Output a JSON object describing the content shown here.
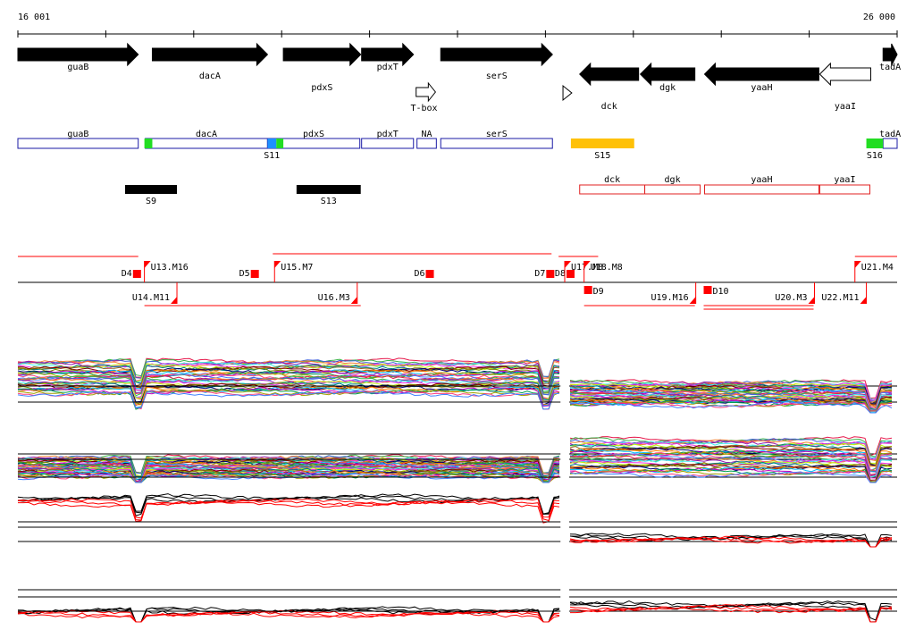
{
  "axis": {
    "start_label": "16 001",
    "end_label": "26 000",
    "start": 16001,
    "end": 26000
  },
  "colors": {
    "gene": "#000000",
    "outline_plus": "#1a1aa6",
    "outline_minus": "#e02020",
    "highlight_green": "#22dd22",
    "highlight_blue": "#1e90ff",
    "highlight_orange": "#ffc107",
    "marker_red": "#ff0000"
  },
  "genes": [
    {
      "id": "gene-guab",
      "label": "guaB",
      "start": 16001,
      "end": 17370,
      "strand": "+",
      "fill": "black",
      "label_row": 1
    },
    {
      "id": "gene-daca",
      "label": "dacA",
      "start": 17530,
      "end": 18840,
      "strand": "+",
      "fill": "black",
      "label_row": 2
    },
    {
      "id": "gene-pdxs",
      "label": "pdxS",
      "start": 19020,
      "end": 19900,
      "strand": "+",
      "fill": "black",
      "label_row": 3
    },
    {
      "id": "gene-pdxt",
      "label": "pdxT",
      "start": 19910,
      "end": 20500,
      "strand": "+",
      "fill": "black",
      "label_row": 1
    },
    {
      "id": "gene-sers",
      "label": "serS",
      "start": 20810,
      "end": 22080,
      "strand": "+",
      "fill": "black",
      "label_row": 2
    },
    {
      "id": "gene-dck",
      "label": "dck",
      "start": 22390,
      "end": 23060,
      "strand": "-",
      "fill": "black",
      "label_row": 4
    },
    {
      "id": "gene-dgk",
      "label": "dgk",
      "start": 23080,
      "end": 23700,
      "strand": "-",
      "fill": "black",
      "label_row": 3
    },
    {
      "id": "gene-yaah",
      "label": "yaaH",
      "start": 23810,
      "end": 25110,
      "strand": "-",
      "fill": "black",
      "label_row": 3
    },
    {
      "id": "gene-yaai",
      "label": "yaaI",
      "start": 25120,
      "end": 25700,
      "strand": "-",
      "fill": "white",
      "label_row": 4
    },
    {
      "id": "gene-tada",
      "label": "tadA",
      "start": 25840,
      "end": 26000,
      "strand": "+",
      "fill": "black",
      "label_row": 1
    }
  ],
  "features": [
    {
      "id": "tbox",
      "label": "T-box",
      "kind": "open-arrow",
      "start": 20530,
      "end": 20750
    },
    {
      "id": "terminator",
      "label": "",
      "kind": "small-triangle",
      "start": 22200,
      "end": 22300
    }
  ],
  "transcripts": [
    {
      "label": "guaB",
      "start": 16001,
      "end": 17370,
      "color": "blue"
    },
    {
      "label": "dacA",
      "start": 17450,
      "end": 18840,
      "color": "blue"
    },
    {
      "label": "pdxS",
      "start": 18840,
      "end": 19890,
      "color": "blue"
    },
    {
      "label": "pdxT",
      "start": 19910,
      "end": 20500,
      "color": "blue"
    },
    {
      "label": "NA",
      "start": 20540,
      "end": 20760,
      "color": "blue"
    },
    {
      "label": "serS",
      "start": 20810,
      "end": 22080,
      "color": "blue"
    },
    {
      "label": "tadA",
      "start": 25840,
      "end": 26000,
      "color": "blue"
    },
    {
      "label": "dck",
      "start": 22390,
      "end": 23130,
      "color": "red"
    },
    {
      "label": "dgk",
      "start": 23130,
      "end": 23760,
      "color": "red"
    },
    {
      "label": "yaaH",
      "start": 23810,
      "end": 25110,
      "color": "red"
    },
    {
      "label": "yaaI",
      "start": 25120,
      "end": 25690,
      "color": "red"
    }
  ],
  "segments": [
    {
      "label": "",
      "start": 17440,
      "end": 17530,
      "color": "green"
    },
    {
      "label": "S11",
      "start": 18840,
      "end": 18940,
      "color": "blue"
    },
    {
      "label": "",
      "start": 18940,
      "end": 19020,
      "color": "green"
    },
    {
      "label": "S15",
      "start": 22290,
      "end": 23010,
      "color": "orange"
    },
    {
      "label": "S16",
      "start": 25650,
      "end": 25840,
      "color": "green"
    },
    {
      "label": "S9",
      "start": 17220,
      "end": 17810,
      "color": "black"
    },
    {
      "label": "S13",
      "start": 19170,
      "end": 19900,
      "color": "black"
    }
  ],
  "d_markers": [
    {
      "label": "D4",
      "pos": 17310
    },
    {
      "label": "D5",
      "pos": 18650
    },
    {
      "label": "D6",
      "pos": 20640
    },
    {
      "label": "D7",
      "pos": 22010
    },
    {
      "label": "D8",
      "pos": 22240
    },
    {
      "label": "D9",
      "pos": 22440
    },
    {
      "label": "D10",
      "pos": 23800
    }
  ],
  "u_markers": [
    {
      "label": "U13.M16",
      "pos": 17440,
      "side": "top"
    },
    {
      "label": "U15.M7",
      "pos": 18920,
      "side": "top"
    },
    {
      "label": "U17.M8",
      "pos": 22220,
      "side": "top"
    },
    {
      "label": "U18.M8",
      "pos": 22440,
      "side": "top"
    },
    {
      "label": "U21.M4",
      "pos": 25520,
      "side": "top"
    },
    {
      "label": "U14.M11",
      "pos": 17810,
      "side": "bottom"
    },
    {
      "label": "U16.M3",
      "pos": 19860,
      "side": "bottom"
    },
    {
      "label": "U19.M16",
      "pos": 23710,
      "side": "bottom"
    },
    {
      "label": "U20.M3",
      "pos": 25060,
      "side": "bottom"
    },
    {
      "label": "U22.M11",
      "pos": 25650,
      "side": "bottom"
    }
  ]
}
